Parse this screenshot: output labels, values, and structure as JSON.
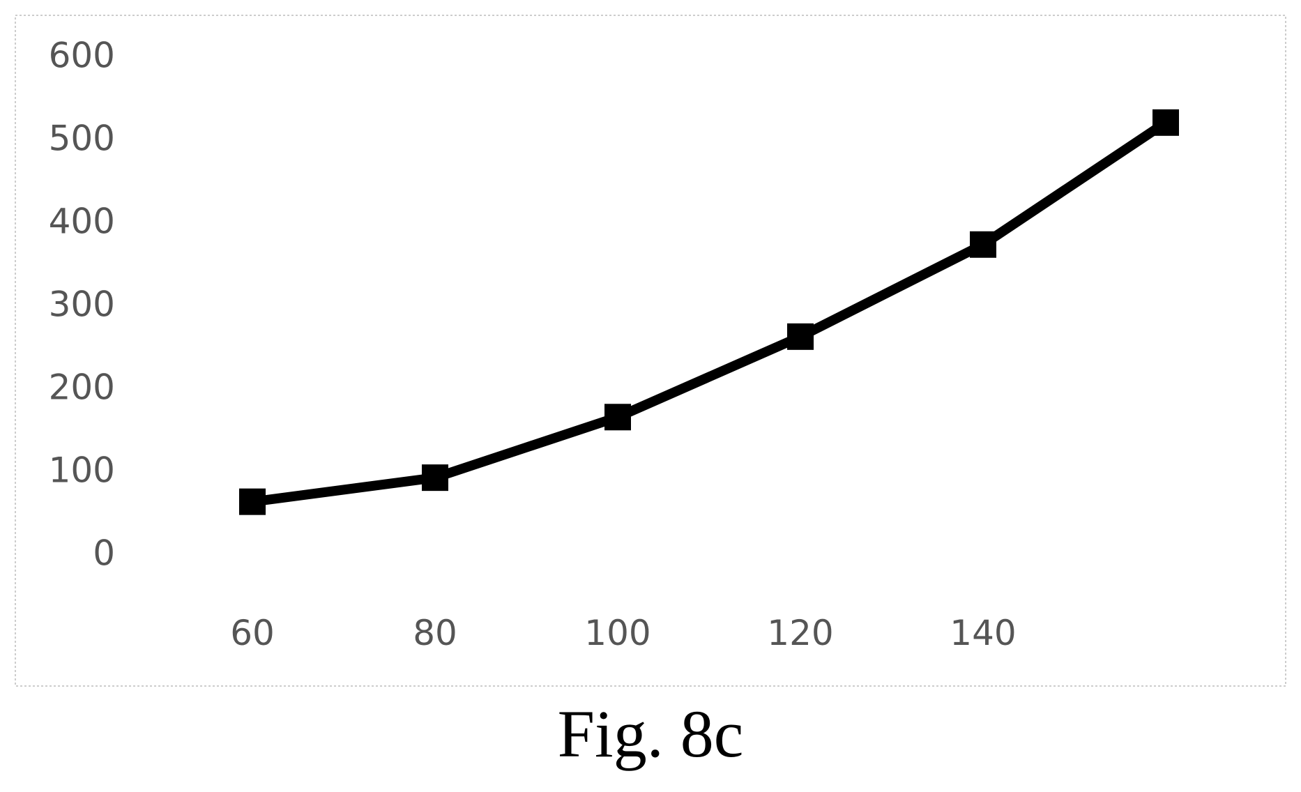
{
  "figure": {
    "caption": "Fig. 8c"
  },
  "colors": {
    "line": "#000000",
    "tick_text": "#555555",
    "frame": "#bbbbbb"
  },
  "chart_data": {
    "type": "line",
    "title": "",
    "xlabel": "",
    "ylabel": "",
    "x_ticks": [
      "60",
      "80",
      "100",
      "120",
      "140"
    ],
    "y_ticks": [
      "0",
      "100",
      "200",
      "300",
      "400",
      "500",
      "600"
    ],
    "ylim": [
      0,
      600
    ],
    "grid": false,
    "legend": "none",
    "marker": "square",
    "series": [
      {
        "x": [
          60,
          80,
          100,
          120,
          140,
          160
        ],
        "y": [
          65,
          94,
          167,
          264,
          375,
          522
        ]
      }
    ]
  }
}
